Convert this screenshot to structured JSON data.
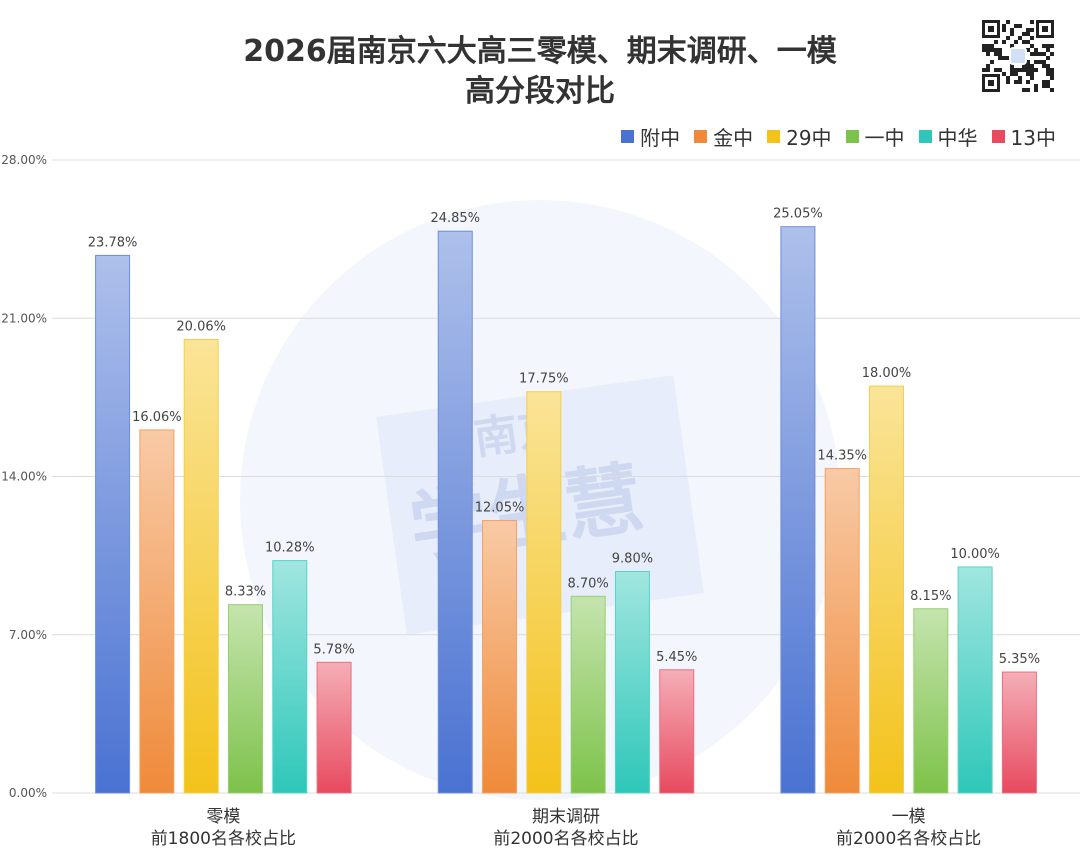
{
  "title_lines": [
    "2026届南京六大高三零模、期末调研、一模",
    "高分段对比"
  ],
  "watermark": {
    "text_top": "南京",
    "text_main": "学生慧"
  },
  "colors": {
    "附中": "#4a72d2",
    "金中": "#ef8a3a",
    "29中": "#f3c21b",
    "一中": "#7dc24a",
    "中华": "#2ec7b9",
    "13中": "#e84a5f"
  },
  "chart_data": {
    "type": "bar",
    "categories": [
      [
        "零模",
        "前1800名各校占比"
      ],
      [
        "期末调研",
        "前2000名各校占比"
      ],
      [
        "一模",
        "前2000名各校占比"
      ]
    ],
    "series": [
      {
        "name": "附中",
        "values": [
          23.78,
          24.85,
          25.05
        ],
        "labels": [
          "23.78%",
          "24.85%",
          "25.05%"
        ]
      },
      {
        "name": "金中",
        "values": [
          16.06,
          12.05,
          14.35
        ],
        "labels": [
          "16.06%",
          "12.05%",
          "14.35%"
        ]
      },
      {
        "name": "29中",
        "values": [
          20.06,
          17.75,
          18.0
        ],
        "labels": [
          "20.06%",
          "17.75%",
          "18.00%"
        ]
      },
      {
        "name": "一中",
        "values": [
          8.33,
          8.7,
          8.15
        ],
        "labels": [
          "8.33%",
          "8.70%",
          "8.15%"
        ]
      },
      {
        "name": "中华",
        "values": [
          10.28,
          9.8,
          10.0
        ],
        "labels": [
          "10.28%",
          "9.80%",
          "10.00%"
        ]
      },
      {
        "name": "13中",
        "values": [
          5.78,
          5.45,
          5.35
        ],
        "labels": [
          "5.78%",
          "5.45%",
          "5.35%"
        ]
      }
    ],
    "yticks": [
      "0.00%",
      "7.00%",
      "14.00%",
      "21.00%",
      "28.00%"
    ],
    "ylim": [
      0,
      28
    ],
    "grid": true,
    "legend": "top-right",
    "title": "2026届南京六大高三零模、期末调研、一模高分段对比",
    "xlabel": "",
    "ylabel": ""
  }
}
